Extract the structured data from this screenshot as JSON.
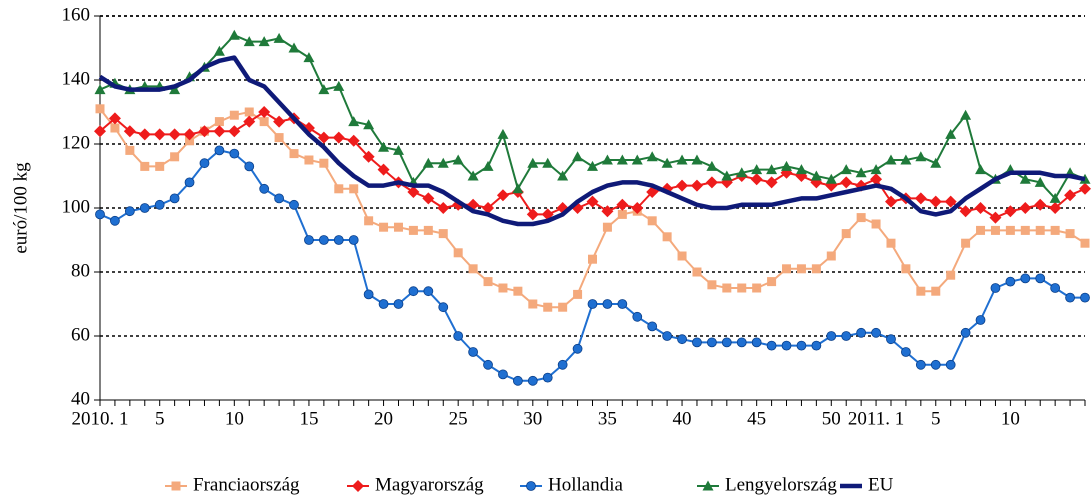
{
  "chart_data": {
    "type": "line",
    "y_label": "euró/100 kg",
    "categories": [
      "2010. 1",
      null,
      null,
      null,
      "5",
      null,
      null,
      null,
      null,
      "10",
      null,
      null,
      null,
      null,
      "15",
      null,
      null,
      null,
      null,
      "20",
      null,
      null,
      null,
      null,
      "25",
      null,
      null,
      null,
      null,
      "30",
      null,
      null,
      null,
      null,
      "35",
      null,
      null,
      null,
      null,
      "40",
      null,
      null,
      null,
      null,
      "45",
      null,
      null,
      null,
      null,
      "50",
      null,
      null,
      "2011. 1",
      null,
      null,
      null,
      "5",
      null,
      null,
      null,
      null,
      "10",
      null,
      null,
      null,
      null,
      null
    ],
    "ylim": [
      40,
      160
    ],
    "yticks": [
      40,
      60,
      80,
      100,
      120,
      140,
      160
    ],
    "grid": true,
    "legend": "bottom",
    "series": [
      {
        "name": "Franciaország",
        "color": "#f4a97c",
        "marker": "square",
        "values": [
          131,
          125,
          118,
          113,
          113,
          116,
          121,
          124,
          127,
          129,
          130,
          127,
          122,
          117,
          115,
          114,
          106,
          106,
          96,
          94,
          94,
          93,
          93,
          92,
          86,
          81,
          77,
          75,
          74,
          70,
          69,
          69,
          73,
          84,
          94,
          98,
          99,
          96,
          91,
          85,
          80,
          76,
          75,
          75,
          75,
          77,
          81,
          81,
          81,
          85,
          92,
          97,
          95,
          89,
          81,
          74,
          74,
          79,
          89,
          93,
          93,
          93,
          93,
          93,
          93,
          92,
          89
        ]
      },
      {
        "name": "Magyarország",
        "color": "#ee1c1c",
        "marker": "diamond",
        "values": [
          124,
          128,
          124,
          123,
          123,
          123,
          123,
          124,
          124,
          124,
          127,
          130,
          127,
          128,
          125,
          122,
          122,
          121,
          116,
          112,
          108,
          105,
          103,
          100,
          101,
          101,
          100,
          104,
          105,
          98,
          98,
          100,
          100,
          102,
          99,
          101,
          100,
          105,
          106,
          107,
          107,
          108,
          108,
          110,
          109,
          108,
          111,
          110,
          108,
          107,
          108,
          107,
          109,
          102,
          103,
          103,
          102,
          102,
          99,
          100,
          97,
          99,
          100,
          101,
          100,
          104,
          106
        ]
      },
      {
        "name": "Hollandia",
        "color": "#1f6fd1",
        "marker": "circle",
        "values": [
          98,
          96,
          99,
          100,
          101,
          103,
          108,
          114,
          118,
          117,
          113,
          106,
          103,
          101,
          90,
          90,
          90,
          90,
          73,
          70,
          70,
          74,
          74,
          69,
          60,
          55,
          51,
          48,
          46,
          46,
          47,
          51,
          56,
          70,
          70,
          70,
          66,
          63,
          60,
          59,
          58,
          58,
          58,
          58,
          58,
          57,
          57,
          57,
          57,
          60,
          60,
          61,
          61,
          59,
          55,
          51,
          51,
          51,
          61,
          65,
          75,
          77,
          78,
          78,
          75,
          72,
          72
        ]
      },
      {
        "name": "Lengyelország",
        "color": "#1f7a3a",
        "marker": "triangle",
        "values": [
          137,
          139,
          137,
          138,
          138,
          137,
          141,
          144,
          149,
          154,
          152,
          152,
          153,
          150,
          147,
          137,
          138,
          127,
          126,
          119,
          118,
          108,
          114,
          114,
          115,
          110,
          113,
          123,
          106,
          114,
          114,
          110,
          116,
          113,
          115,
          115,
          115,
          116,
          114,
          115,
          115,
          113,
          110,
          111,
          112,
          112,
          113,
          112,
          110,
          109,
          112,
          111,
          112,
          115,
          115,
          116,
          114,
          123,
          129,
          112,
          109,
          112,
          109,
          108,
          103,
          111,
          109
        ]
      },
      {
        "name": "EU",
        "color": "#0f1a78",
        "values": [
          141,
          138,
          137,
          137,
          137,
          138,
          140,
          144,
          146,
          147,
          140,
          138,
          133,
          128,
          123,
          119,
          114,
          110,
          107,
          107,
          108,
          107,
          107,
          105,
          102,
          99,
          98,
          96,
          95,
          95,
          96,
          98,
          102,
          105,
          107,
          108,
          108,
          107,
          105,
          103,
          101,
          100,
          100,
          101,
          101,
          101,
          102,
          103,
          103,
          104,
          105,
          106,
          107,
          106,
          103,
          99,
          98,
          99,
          103,
          106,
          109,
          111,
          111,
          111,
          110,
          110,
          109
        ]
      }
    ]
  }
}
